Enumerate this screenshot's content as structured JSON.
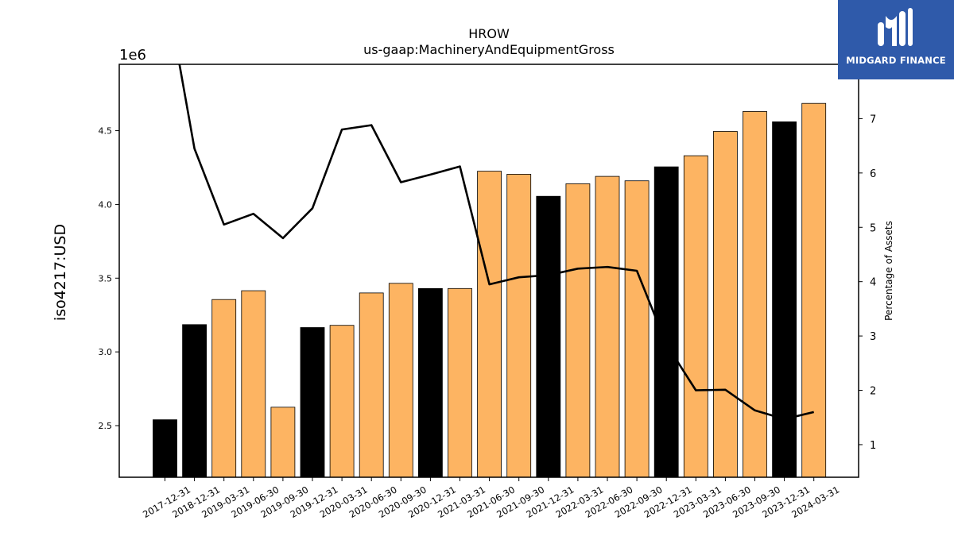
{
  "brand": {
    "name": "MIDGARD FINANCE",
    "bg": "#2f5aaa"
  },
  "chart_data": {
    "type": "bar",
    "title": "HROW",
    "subtitle": "us-gaap:MachineryAndEquipmentGross",
    "ylabel": "iso4217:USD",
    "y_multiplier": "1e6",
    "y2label": "Percentage of Assets",
    "ylim": [
      2150000,
      4950000
    ],
    "y2lim": [
      0.4,
      8.0
    ],
    "yticks": [
      2.5,
      3.0,
      3.5,
      4.0,
      4.5
    ],
    "y2ticks": [
      1,
      2,
      3,
      4,
      5,
      6,
      7
    ],
    "colors": {
      "annual": "#000000",
      "quarter": "#fdb462",
      "line": "#000000"
    },
    "categories": [
      "2017-12-31",
      "2018-12-31",
      "2019-03-31",
      "2019-06-30",
      "2019-09-30",
      "2019-12-31",
      "2020-03-31",
      "2020-06-30",
      "2020-09-30",
      "2020-12-31",
      "2021-03-31",
      "2021-06-30",
      "2021-09-30",
      "2021-12-31",
      "2022-03-31",
      "2022-06-30",
      "2022-09-30",
      "2022-12-31",
      "2023-03-31",
      "2023-06-30",
      "2023-09-30",
      "2023-12-31",
      "2024-03-31"
    ],
    "series": [
      {
        "type": "bar",
        "values": [
          2540000,
          3185000,
          3355000,
          3415000,
          2625000,
          3165000,
          3180000,
          3400000,
          3465000,
          3430000,
          3430000,
          4225000,
          4205000,
          4055000,
          4140000,
          4190000,
          4160000,
          4255000,
          4330000,
          4495000,
          4630000,
          4560000,
          4685000
        ],
        "annual": [
          true,
          true,
          false,
          false,
          false,
          true,
          false,
          false,
          false,
          true,
          false,
          false,
          false,
          true,
          false,
          false,
          false,
          true,
          false,
          false,
          false,
          true,
          false
        ]
      },
      {
        "type": "line",
        "axis": "right",
        "values": [
          9.5,
          6.45,
          5.05,
          5.25,
          4.8,
          5.35,
          6.8,
          6.88,
          5.83,
          5.97,
          6.12,
          3.95,
          4.08,
          4.12,
          4.24,
          4.27,
          4.2,
          2.85,
          2.0,
          2.01,
          1.63,
          1.47,
          1.6
        ]
      }
    ]
  }
}
